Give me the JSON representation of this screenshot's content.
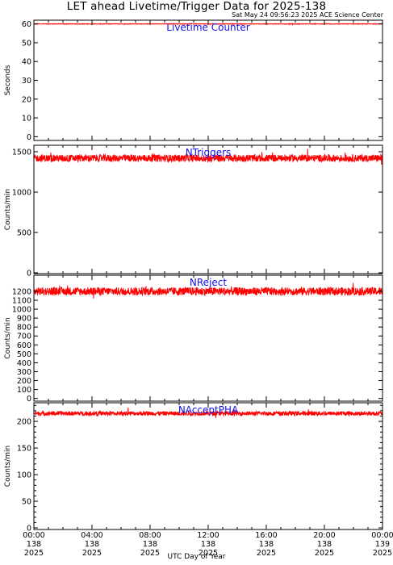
{
  "title": "LET ahead Livetime/Trigger Data for 2025-138",
  "subtitle": "Sat May 24 09:56:23 2025 ACE Science Center",
  "xlabel": "UTC Day of Year",
  "x_ticks": [
    {
      "time": "00:00",
      "doy": "138",
      "year": "2025"
    },
    {
      "time": "04:00",
      "doy": "138",
      "year": "2025"
    },
    {
      "time": "08:00",
      "doy": "138",
      "year": "2025"
    },
    {
      "time": "12:00",
      "doy": "138",
      "year": "2025"
    },
    {
      "time": "16:00",
      "doy": "138",
      "year": "2025"
    },
    {
      "time": "20:00",
      "doy": "138",
      "year": "2025"
    },
    {
      "time": "00:00",
      "doy": "139",
      "year": "2025"
    }
  ],
  "colors": {
    "series": "#ff0000",
    "panel_label": "#1010ee",
    "axes": "#000000"
  },
  "chart_data": [
    {
      "type": "line",
      "panel_label": "Livetime Counter",
      "ylabel": "Seconds",
      "xlim": [
        "2025-138 00:00",
        "2025-139 00:00"
      ],
      "ylim": [
        -2,
        62
      ],
      "yticks": [
        0,
        10,
        20,
        30,
        40,
        50,
        60
      ],
      "series": [
        {
          "mean": 60,
          "spread": 0.15
        }
      ]
    },
    {
      "type": "line",
      "panel_label": "NTriggers",
      "ylabel": "Counts/min",
      "xlim": [
        "2025-138 00:00",
        "2025-139 00:00"
      ],
      "ylim": [
        -10,
        1580
      ],
      "yticks": [
        0,
        500,
        1000,
        1500
      ],
      "series": [
        {
          "mean": 1420,
          "spread": 45
        }
      ]
    },
    {
      "type": "line",
      "panel_label": "NReject",
      "ylabel": "Counts/min",
      "xlim": [
        "2025-138 00:00",
        "2025-139 00:00"
      ],
      "ylim": [
        -30,
        1380
      ],
      "yticks": [
        0,
        100,
        200,
        300,
        400,
        500,
        600,
        700,
        800,
        900,
        1000,
        1100,
        1200
      ],
      "series": [
        {
          "mean": 1200,
          "spread": 45
        }
      ]
    },
    {
      "type": "line",
      "panel_label": "NAcceptPHA",
      "ylabel": "Counts/min",
      "xlim": [
        "2025-138 00:00",
        "2025-139 00:00"
      ],
      "ylim": [
        -3,
        235
      ],
      "yticks": [
        0,
        10,
        20,
        30,
        40,
        50,
        60,
        70,
        80,
        90,
        100,
        110,
        120,
        130,
        140,
        150,
        160,
        170,
        180,
        190,
        200,
        210,
        220,
        230
      ],
      "ytick_labels": [
        0,
        50,
        100,
        150,
        200
      ],
      "series": [
        {
          "mean": 215,
          "spread": 4
        }
      ]
    }
  ]
}
